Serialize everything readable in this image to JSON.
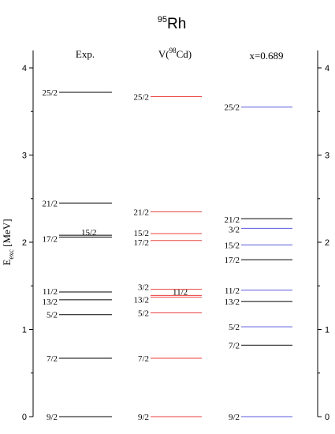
{
  "chart_data": {
    "type": "level-scheme",
    "title": {
      "superscript": "95",
      "base": "Rh"
    },
    "ylabel": {
      "base": "E",
      "subscript": "exc",
      "rest": " [MeV]"
    },
    "ylim": [
      0,
      4.2
    ],
    "yticks": [
      0,
      1,
      2,
      3,
      4
    ],
    "minor_tick_step": 0.5,
    "columns": [
      {
        "header": "Exp.",
        "level_color": "#000000",
        "levels": [
          {
            "label": "9/2",
            "energy": 0.0
          },
          {
            "label": "7/2",
            "energy": 0.67
          },
          {
            "label": "5/2",
            "energy": 1.17
          },
          {
            "label": "13/2",
            "energy": 1.34
          },
          {
            "label": "11/2",
            "energy": 1.43
          },
          {
            "label": "17/2",
            "energy": 2.06
          },
          {
            "label": "15/2",
            "energy": 2.08
          },
          {
            "label": "21/2",
            "energy": 2.45
          },
          {
            "label": "25/2",
            "energy": 3.72
          }
        ]
      },
      {
        "header": {
          "base": "V(",
          "superscript": "98",
          "rest": "Cd)"
        },
        "level_color": "#e8413c",
        "levels": [
          {
            "label": "9/2",
            "energy": 0.0
          },
          {
            "label": "7/2",
            "energy": 0.67
          },
          {
            "label": "5/2",
            "energy": 1.19
          },
          {
            "label": "13/2",
            "energy": 1.37
          },
          {
            "label": "11/2",
            "energy": 1.39
          },
          {
            "label": "3/2",
            "energy": 1.46
          },
          {
            "label": "17/2",
            "energy": 2.02
          },
          {
            "label": "15/2",
            "energy": 2.1
          },
          {
            "label": "21/2",
            "energy": 2.35
          },
          {
            "label": "25/2",
            "energy": 3.67
          }
        ]
      },
      {
        "header": "x=0.689",
        "level_color": "#5a5ae0",
        "levels": [
          {
            "label": "9/2",
            "energy": 0.0,
            "color": "#5a5ae0"
          },
          {
            "label": "7/2",
            "energy": 0.82,
            "color": "#000000"
          },
          {
            "label": "5/2",
            "energy": 1.03,
            "color": "#5a5ae0"
          },
          {
            "label": "13/2",
            "energy": 1.32,
            "color": "#000000"
          },
          {
            "label": "11/2",
            "energy": 1.45,
            "color": "#5a5ae0"
          },
          {
            "label": "17/2",
            "energy": 1.8,
            "color": "#000000"
          },
          {
            "label": "15/2",
            "energy": 1.97,
            "color": "#5a5ae0"
          },
          {
            "label": "3/2",
            "energy": 2.16,
            "color": "#5a5ae0"
          },
          {
            "label": "21/2",
            "energy": 2.27,
            "color": "#000000"
          },
          {
            "label": "25/2",
            "energy": 3.55,
            "color": "#5a5ae0"
          }
        ]
      }
    ]
  }
}
